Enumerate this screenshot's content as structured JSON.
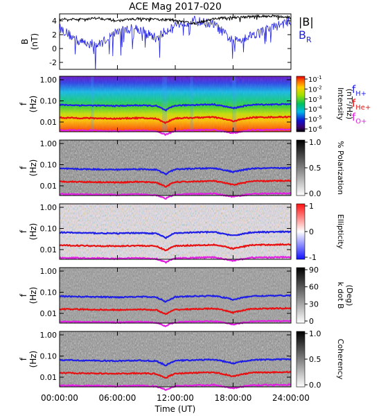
{
  "title": "ACE Mag 2017-020",
  "colors": {
    "b_total": "#000000",
    "b_r": "#2020e0",
    "f_h": "#1f1fe6",
    "f_he": "#e81010",
    "f_o": "#e020e0"
  },
  "chart_data": {
    "type": "line+spectrogram",
    "x": {
      "label": "Time (UT)",
      "ticks": [
        "00:00:00",
        "06:00:00",
        "12:00:00",
        "18:00:00",
        "24:00:00"
      ],
      "range_hours": [
        0,
        24
      ]
    },
    "panels": [
      {
        "name": "magnetic-field",
        "ylabel": "B",
        "yunit": "(nT)",
        "ylim": [
          -3,
          5
        ],
        "yticks": [
          "-2",
          "0",
          "2",
          "4"
        ],
        "legend": [
          {
            "label": "|B|",
            "color": "#000000"
          },
          {
            "label": "B",
            "sub": "R",
            "color": "#2020e0"
          }
        ],
        "series": [
          {
            "name": "|B|",
            "approx_level_nT": [
              4.3,
              4.2,
              4.4,
              4.0,
              4.3,
              4.2,
              4.1,
              3.6,
              4.3,
              4.5,
              4.6,
              4.7,
              4.5
            ]
          },
          {
            "name": "B_R",
            "approx_level_nT": [
              3.0,
              1.0,
              0.5,
              2.5,
              3.0,
              1.5,
              3.5,
              4.0,
              3.5,
              1.0,
              2.0,
              3.0,
              4.0
            ]
          }
        ]
      },
      {
        "name": "intensity",
        "ylabel": "f",
        "yunit": "(Hz)",
        "yticks": [
          "1.00",
          "0.10",
          "0.01"
        ],
        "colorbar": {
          "label": "Intensity",
          "unit": "(nT²/Hz)",
          "ticks": [
            {
              "b": "10",
              "e": "-1"
            },
            {
              "b": "10",
              "e": "-2"
            },
            {
              "b": "10",
              "e": "-3"
            },
            {
              "b": "10",
              "e": "-4"
            },
            {
              "b": "10",
              "e": "-5"
            },
            {
              "b": "10",
              "e": "-6"
            }
          ]
        },
        "legend": [
          {
            "b": "f",
            "s": "H+",
            "color": "#1f1fe6"
          },
          {
            "b": "f",
            "s": "He+",
            "color": "#e81010"
          },
          {
            "b": "f",
            "s": "O+",
            "color": "#e020e0"
          }
        ]
      },
      {
        "name": "polarization",
        "ylabel": "f",
        "yunit": "(Hz)",
        "yticks": [
          "1.00",
          "0.10",
          "0.01"
        ],
        "colorbar": {
          "label": "% Polarization",
          "ticks": [
            "1.0",
            "0.5",
            "0.0"
          ]
        }
      },
      {
        "name": "ellipticity",
        "ylabel": "f",
        "yunit": "(Hz)",
        "yticks": [
          "1.00",
          "0.10",
          "0.01"
        ],
        "colorbar": {
          "label": "Ellipticity",
          "ticks": [
            "1",
            "0",
            "-1"
          ]
        }
      },
      {
        "name": "k-dot-b",
        "ylabel": "f",
        "yunit": "(Hz)",
        "yticks": [
          "1.00",
          "0.10",
          "0.01"
        ],
        "colorbar": {
          "label": "k dot B",
          "unit": "(Deg)",
          "ticks": [
            "90",
            "60",
            "30",
            "0"
          ]
        }
      },
      {
        "name": "coherency",
        "ylabel": "f",
        "yunit": "(Hz)",
        "yticks": [
          "1.00",
          "0.10",
          "0.01"
        ],
        "colorbar": {
          "label": "Coherency",
          "ticks": [
            "1.0",
            "0.5",
            "0.0"
          ]
        }
      }
    ],
    "gyrofrequency_lines_hz": {
      "f_H+": {
        "x_hours": [
          0,
          2,
          4,
          6,
          8,
          10,
          11,
          12,
          14,
          16,
          18,
          20,
          22,
          24
        ],
        "y": [
          0.065,
          0.062,
          0.06,
          0.058,
          0.062,
          0.058,
          0.035,
          0.06,
          0.065,
          0.068,
          0.045,
          0.066,
          0.068,
          0.07
        ]
      },
      "f_He+": {
        "x_hours": [
          0,
          2,
          4,
          6,
          8,
          10,
          11,
          12,
          14,
          16,
          18,
          20,
          22,
          24
        ],
        "y": [
          0.016,
          0.0155,
          0.015,
          0.0145,
          0.0155,
          0.0145,
          0.009,
          0.015,
          0.016,
          0.017,
          0.011,
          0.0165,
          0.017,
          0.0175
        ]
      },
      "f_O+": {
        "x_hours": [
          0,
          2,
          4,
          6,
          8,
          10,
          11,
          12,
          14,
          16,
          18,
          20,
          22,
          24
        ],
        "y": [
          0.0041,
          0.004,
          0.0039,
          0.0037,
          0.004,
          0.0037,
          0.0025,
          0.0038,
          0.0041,
          0.0043,
          0.003,
          0.0042,
          0.0043,
          0.0044
        ]
      }
    }
  }
}
